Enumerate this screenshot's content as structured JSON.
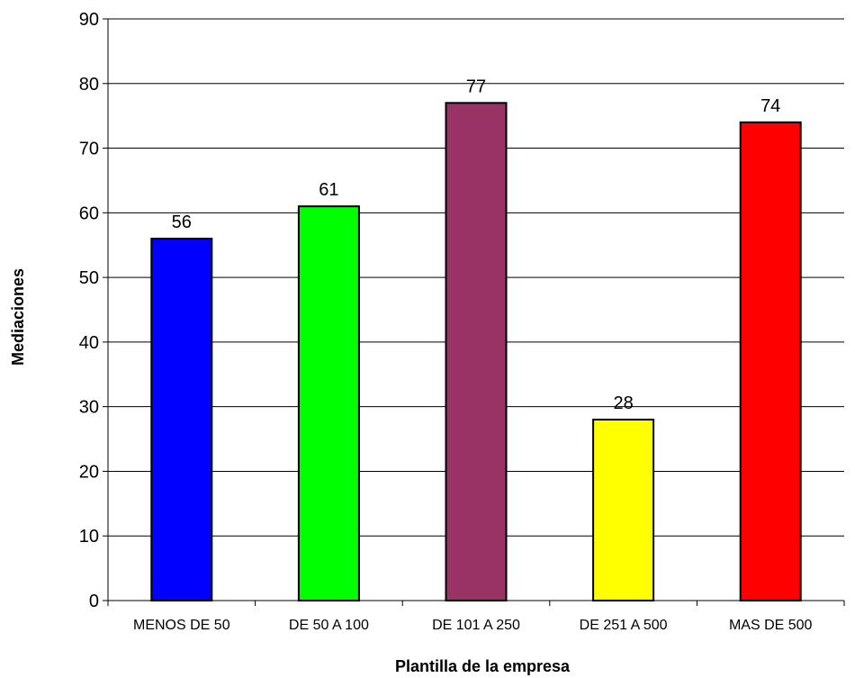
{
  "chart_data": {
    "type": "bar",
    "title": "",
    "xlabel": "Plantilla de la empresa",
    "ylabel": "Mediaciones",
    "categories": [
      "MENOS DE 50",
      "DE 50 A 100",
      "DE 101 A 250",
      "DE 251 A 500",
      "MAS DE 500"
    ],
    "values": [
      56,
      61,
      77,
      28,
      74
    ],
    "colors": [
      "#0000ff",
      "#00ff00",
      "#993366",
      "#ffff00",
      "#ff0000"
    ],
    "ylim": [
      0,
      90
    ],
    "yticks": [
      0,
      10,
      20,
      30,
      40,
      50,
      60,
      70,
      80,
      90
    ],
    "grid": true,
    "legend": "none"
  }
}
